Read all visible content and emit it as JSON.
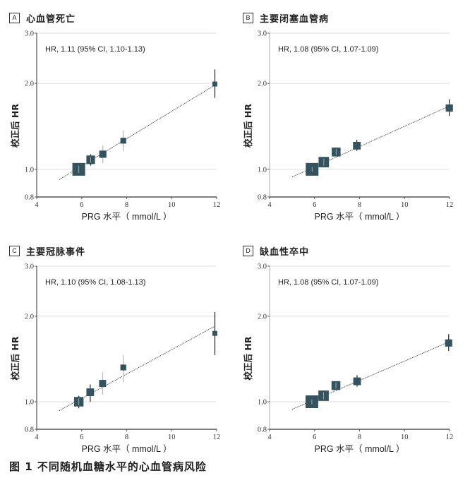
{
  "figure": {
    "caption": "图 1  不同随机血糖水平的心血管病风险"
  },
  "colors": {
    "marker": "#35535f",
    "ci_line_dark": "#333333",
    "ci_line_light": "#bbbbbb",
    "grid": "#dddddd",
    "axis": "#333333",
    "trend": "#444444"
  },
  "chart_data": [
    {
      "type": "scatter",
      "panel_letter": "A",
      "title": "心血管死亡",
      "annotation": "HR, 1.11 (95% CI, 1.10-1.13)",
      "xlabel": "PRG 水平（ mmol/L ）",
      "ylabel": "校正后 HR",
      "xlim": [
        4,
        12
      ],
      "ylim": [
        0.8,
        3.0
      ],
      "y_scale": "log",
      "x_ticks": [
        "4",
        "6",
        "8",
        "10",
        "12"
      ],
      "y_ticks": [
        "0.8",
        "1.0",
        "2.0",
        "3.0"
      ],
      "grid_y": [
        1.0,
        2.0,
        3.0
      ],
      "points": [
        {
          "x": 5.87,
          "hr": 1.0,
          "ci": [
            0.97,
            1.03
          ],
          "weight": 1.0
        },
        {
          "x": 6.4,
          "hr": 1.08,
          "ci": [
            1.03,
            1.13
          ],
          "weight": 0.55
        },
        {
          "x": 6.94,
          "hr": 1.13,
          "ci": [
            1.05,
            1.21
          ],
          "weight": 0.4
        },
        {
          "x": 7.85,
          "hr": 1.26,
          "ci": [
            1.16,
            1.37
          ],
          "weight": 0.25
        },
        {
          "x": 11.92,
          "hr": 1.99,
          "ci": [
            1.78,
            2.24
          ],
          "weight": 0.15
        }
      ],
      "trend": {
        "x": [
          5.0,
          11.95
        ],
        "y": [
          0.92,
          1.98
        ]
      }
    },
    {
      "type": "scatter",
      "panel_letter": "B",
      "title": "主要闭塞血管病",
      "annotation": "HR, 1.08 (95% CI, 1.07-1.09)",
      "xlabel": "PRG 水平（ mmol/L ）",
      "ylabel": "校正后 HR",
      "xlim": [
        4,
        12
      ],
      "ylim": [
        0.8,
        3.0
      ],
      "y_scale": "log",
      "x_ticks": [
        "4",
        "6",
        "8",
        "10",
        "12"
      ],
      "y_ticks": [
        "0.8",
        "1.0",
        "2.0",
        "3.0"
      ],
      "grid_y": [
        1.0,
        2.0,
        3.0
      ],
      "points": [
        {
          "x": 5.89,
          "hr": 1.0,
          "ci": [
            0.98,
            1.02
          ],
          "weight": 1.0
        },
        {
          "x": 6.41,
          "hr": 1.06,
          "ci": [
            1.03,
            1.09
          ],
          "weight": 0.75
        },
        {
          "x": 6.96,
          "hr": 1.15,
          "ci": [
            1.11,
            1.19
          ],
          "weight": 0.58
        },
        {
          "x": 7.88,
          "hr": 1.21,
          "ci": [
            1.16,
            1.27
          ],
          "weight": 0.45
        },
        {
          "x": 11.99,
          "hr": 1.64,
          "ci": [
            1.54,
            1.76
          ],
          "weight": 0.4
        }
      ],
      "trend": {
        "x": [
          5.0,
          11.95
        ],
        "y": [
          0.94,
          1.66
        ]
      }
    },
    {
      "type": "scatter",
      "panel_letter": "C",
      "title": "主要冠脉事件",
      "annotation": "HR, 1.10 (95% CI, 1.08-1.13)",
      "xlabel": "PRG 水平（ mmol/L ）",
      "ylabel": "校正后 HR",
      "xlim": [
        4,
        12
      ],
      "ylim": [
        0.8,
        3.0
      ],
      "y_scale": "log",
      "x_ticks": [
        "4",
        "6",
        "8",
        "10",
        "12"
      ],
      "y_ticks": [
        "0.8",
        "1.0",
        "2.0",
        "3.0"
      ],
      "grid_y": [
        1.0,
        2.0,
        3.0
      ],
      "points": [
        {
          "x": 5.87,
          "hr": 1.0,
          "ci": [
            0.95,
            1.05
          ],
          "weight": 0.65
        },
        {
          "x": 6.38,
          "hr": 1.08,
          "ci": [
            1.0,
            1.15
          ],
          "weight": 0.45
        },
        {
          "x": 6.93,
          "hr": 1.16,
          "ci": [
            1.06,
            1.27
          ],
          "weight": 0.38
        },
        {
          "x": 7.85,
          "hr": 1.32,
          "ci": [
            1.17,
            1.46
          ],
          "weight": 0.25
        },
        {
          "x": 11.92,
          "hr": 1.74,
          "ci": [
            1.46,
            2.07
          ],
          "weight": 0.15
        }
      ],
      "trend": {
        "x": [
          5.0,
          11.95
        ],
        "y": [
          0.93,
          1.85
        ]
      }
    },
    {
      "type": "scatter",
      "panel_letter": "D",
      "title": "缺血性卒中",
      "annotation": "HR, 1.08 (95% CI, 1.07-1.09)",
      "xlabel": "PRG 水平（ mmol/L ）",
      "ylabel": "校正后 HR",
      "xlim": [
        4,
        12
      ],
      "ylim": [
        0.8,
        3.0
      ],
      "y_scale": "log",
      "x_ticks": [
        "4",
        "6",
        "8",
        "10",
        "12"
      ],
      "y_ticks": [
        "0.8",
        "1.0",
        "2.0",
        "3.0"
      ],
      "grid_y": [
        1.0,
        2.0,
        3.0
      ],
      "points": [
        {
          "x": 5.88,
          "hr": 1.0,
          "ci": [
            0.98,
            1.02
          ],
          "weight": 1.0
        },
        {
          "x": 6.4,
          "hr": 1.05,
          "ci": [
            1.02,
            1.08
          ],
          "weight": 0.75
        },
        {
          "x": 6.95,
          "hr": 1.14,
          "ci": [
            1.1,
            1.18
          ],
          "weight": 0.58
        },
        {
          "x": 7.89,
          "hr": 1.18,
          "ci": [
            1.13,
            1.24
          ],
          "weight": 0.45
        },
        {
          "x": 11.96,
          "hr": 1.61,
          "ci": [
            1.51,
            1.73
          ],
          "weight": 0.4
        }
      ],
      "trend": {
        "x": [
          5.0,
          11.95
        ],
        "y": [
          0.94,
          1.62
        ]
      }
    }
  ]
}
